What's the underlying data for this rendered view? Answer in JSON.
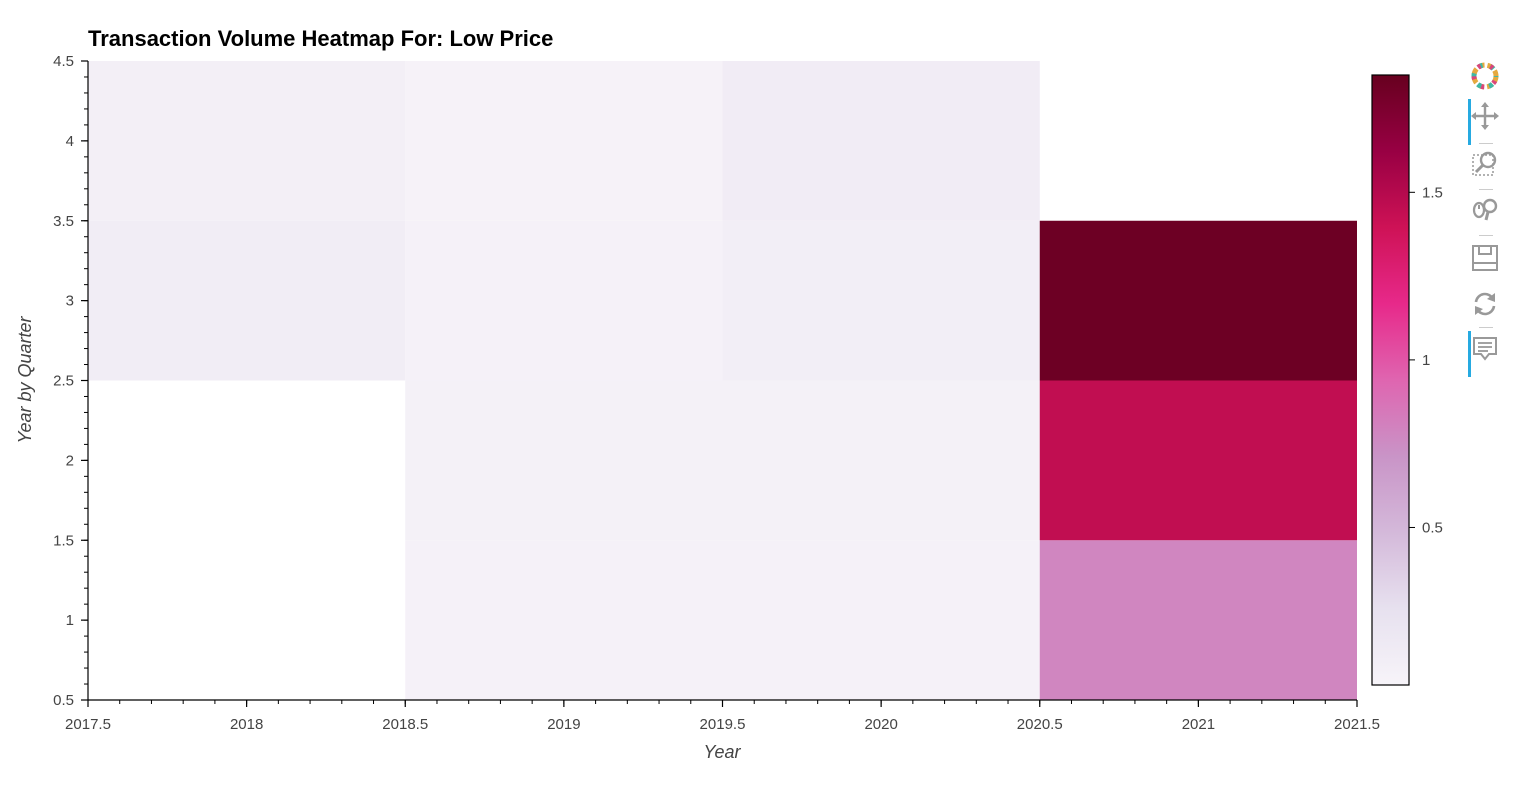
{
  "chart_data": {
    "type": "heatmap",
    "title": "Transaction Volume Heatmap For: Low Price",
    "xlabel": "Year",
    "ylabel": "Year by Quarter",
    "xlim": [
      2017.5,
      2021.5
    ],
    "ylim": [
      0.5,
      4.5
    ],
    "x_ticks": [
      "2017.5",
      "2018",
      "2018.5",
      "2019",
      "2019.5",
      "2020",
      "2020.5",
      "2021",
      "2021.5"
    ],
    "y_ticks": [
      "0.5",
      "1",
      "1.5",
      "2",
      "2.5",
      "3",
      "3.5",
      "4",
      "4.5"
    ],
    "years": [
      2018,
      2019,
      2020,
      2021
    ],
    "quarters": [
      1,
      2,
      3,
      4
    ],
    "cells": [
      {
        "year": 2018,
        "quarter": 3,
        "value": 0.11
      },
      {
        "year": 2018,
        "quarter": 4,
        "value": 0.09
      },
      {
        "year": 2019,
        "quarter": 1,
        "value": 0.06
      },
      {
        "year": 2019,
        "quarter": 2,
        "value": 0.07
      },
      {
        "year": 2019,
        "quarter": 3,
        "value": 0.06
      },
      {
        "year": 2019,
        "quarter": 4,
        "value": 0.05
      },
      {
        "year": 2020,
        "quarter": 1,
        "value": 0.06
      },
      {
        "year": 2020,
        "quarter": 2,
        "value": 0.07
      },
      {
        "year": 2020,
        "quarter": 3,
        "value": 0.1
      },
      {
        "year": 2020,
        "quarter": 4,
        "value": 0.12
      },
      {
        "year": 2021,
        "quarter": 1,
        "value": 0.78
      },
      {
        "year": 2021,
        "quarter": 2,
        "value": 1.45
      },
      {
        "year": 2021,
        "quarter": 3,
        "value": 1.82
      }
    ],
    "colorbar": {
      "range": [
        0.03,
        1.85
      ],
      "ticks": [
        "0.5",
        "1",
        "1.5"
      ],
      "palette": [
        "#f7f4f9",
        "#e7e1ef",
        "#d4b9da",
        "#c994c7",
        "#df65b0",
        "#e7298a",
        "#ce1256",
        "#980043",
        "#67001f"
      ]
    },
    "grid": false,
    "legend": "colorbar-right"
  },
  "toolbar": {
    "tools": [
      "bokeh-logo-icon",
      "pan-icon",
      "box-zoom-icon",
      "wheel-zoom-icon",
      "save-icon",
      "reset-icon",
      "hover-icon"
    ]
  }
}
